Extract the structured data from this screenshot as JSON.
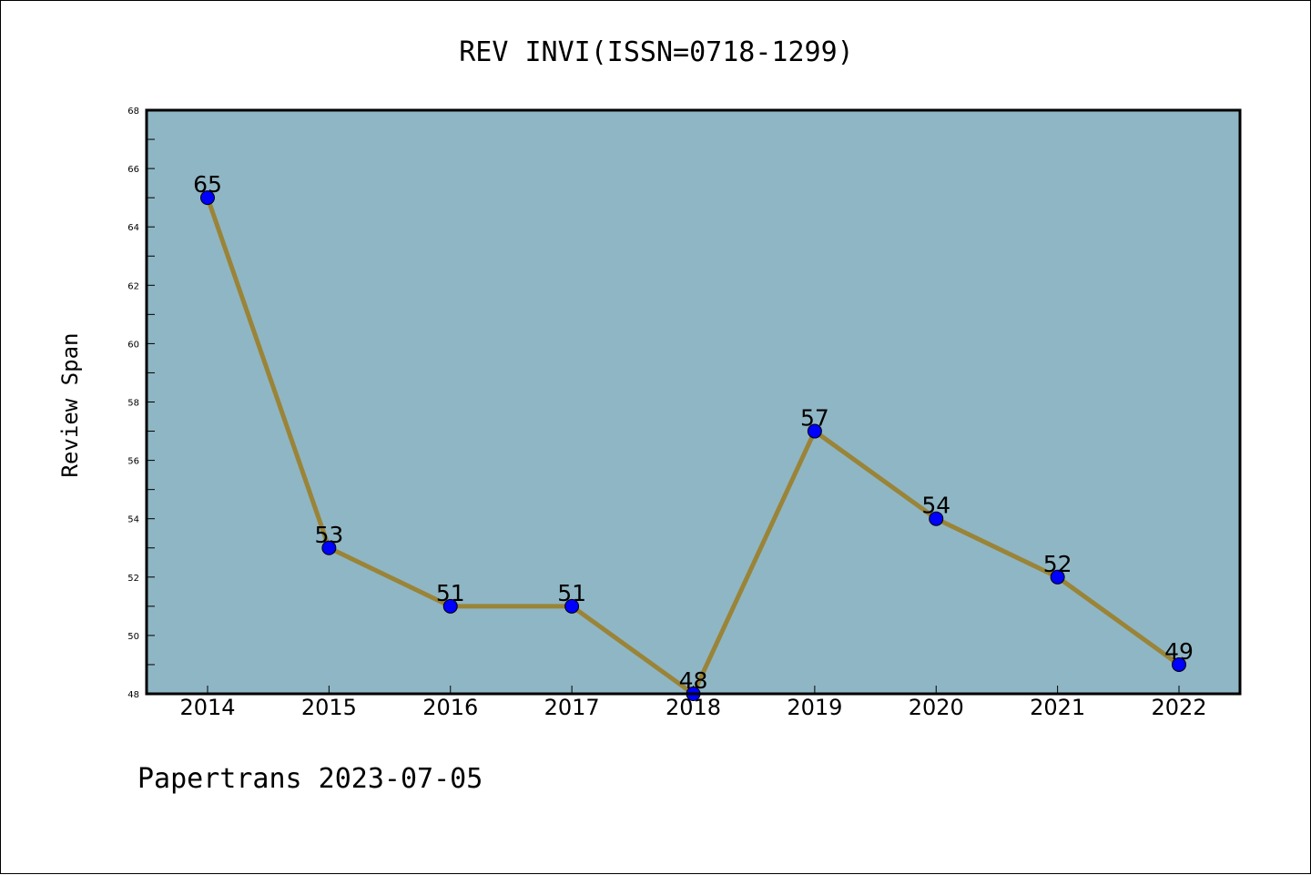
{
  "chart_data": {
    "type": "line",
    "title": "REV INVI(ISSN=0718-1299)",
    "xlabel": "",
    "ylabel": "Review Span",
    "categories": [
      "2014",
      "2015",
      "2016",
      "2017",
      "2018",
      "2019",
      "2020",
      "2021",
      "2022"
    ],
    "values": [
      65,
      53,
      51,
      51,
      48,
      57,
      54,
      52,
      49
    ],
    "ylim": [
      48,
      68
    ],
    "yticks": [
      48,
      50,
      52,
      54,
      56,
      58,
      60,
      62,
      64,
      66,
      68
    ],
    "grid": false,
    "legend": "none",
    "colors": {
      "plot_background": "#8fb6c4",
      "line": "#9a8438",
      "marker": "#0000ff",
      "marker_edge": "#000000"
    }
  },
  "footer": "Papertrans 2023-07-05"
}
